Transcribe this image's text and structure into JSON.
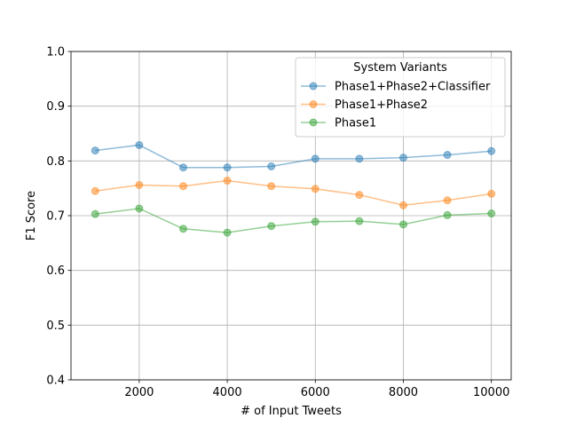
{
  "chart_data": {
    "type": "line",
    "title": "",
    "xlabel": "# of Input Tweets",
    "ylabel": "F1 Score",
    "xlim": [
      450,
      10450
    ],
    "ylim": [
      0.4,
      1.0
    ],
    "xticks": [
      2000,
      4000,
      6000,
      8000,
      10000
    ],
    "yticks": [
      0.4,
      0.5,
      0.6,
      0.7,
      0.8,
      0.9,
      1.0
    ],
    "xtick_labels": [
      "2000",
      "4000",
      "6000",
      "8000",
      "10000"
    ],
    "ytick_labels": [
      "0.4",
      "0.5",
      "0.6",
      "0.7",
      "0.8",
      "0.9",
      "1.0"
    ],
    "grid": true,
    "legend": {
      "title": "System Variants",
      "placement": "top-right"
    },
    "x": [
      1000,
      2000,
      3000,
      4000,
      5000,
      6000,
      7000,
      8000,
      9000,
      10000
    ],
    "series": [
      {
        "name": "Phase1+Phase2+Classifier",
        "color": "#1f77b4",
        "values": [
          0.819,
          0.829,
          0.788,
          0.788,
          0.79,
          0.804,
          0.804,
          0.806,
          0.811,
          0.818
        ]
      },
      {
        "name": "Phase1+Phase2",
        "color": "#ff7f0e",
        "values": [
          0.745,
          0.756,
          0.754,
          0.764,
          0.754,
          0.749,
          0.738,
          0.719,
          0.728,
          0.74
        ]
      },
      {
        "name": "Phase1",
        "color": "#2ca02c",
        "values": [
          0.703,
          0.713,
          0.676,
          0.669,
          0.681,
          0.689,
          0.69,
          0.684,
          0.701,
          0.704
        ]
      }
    ]
  }
}
